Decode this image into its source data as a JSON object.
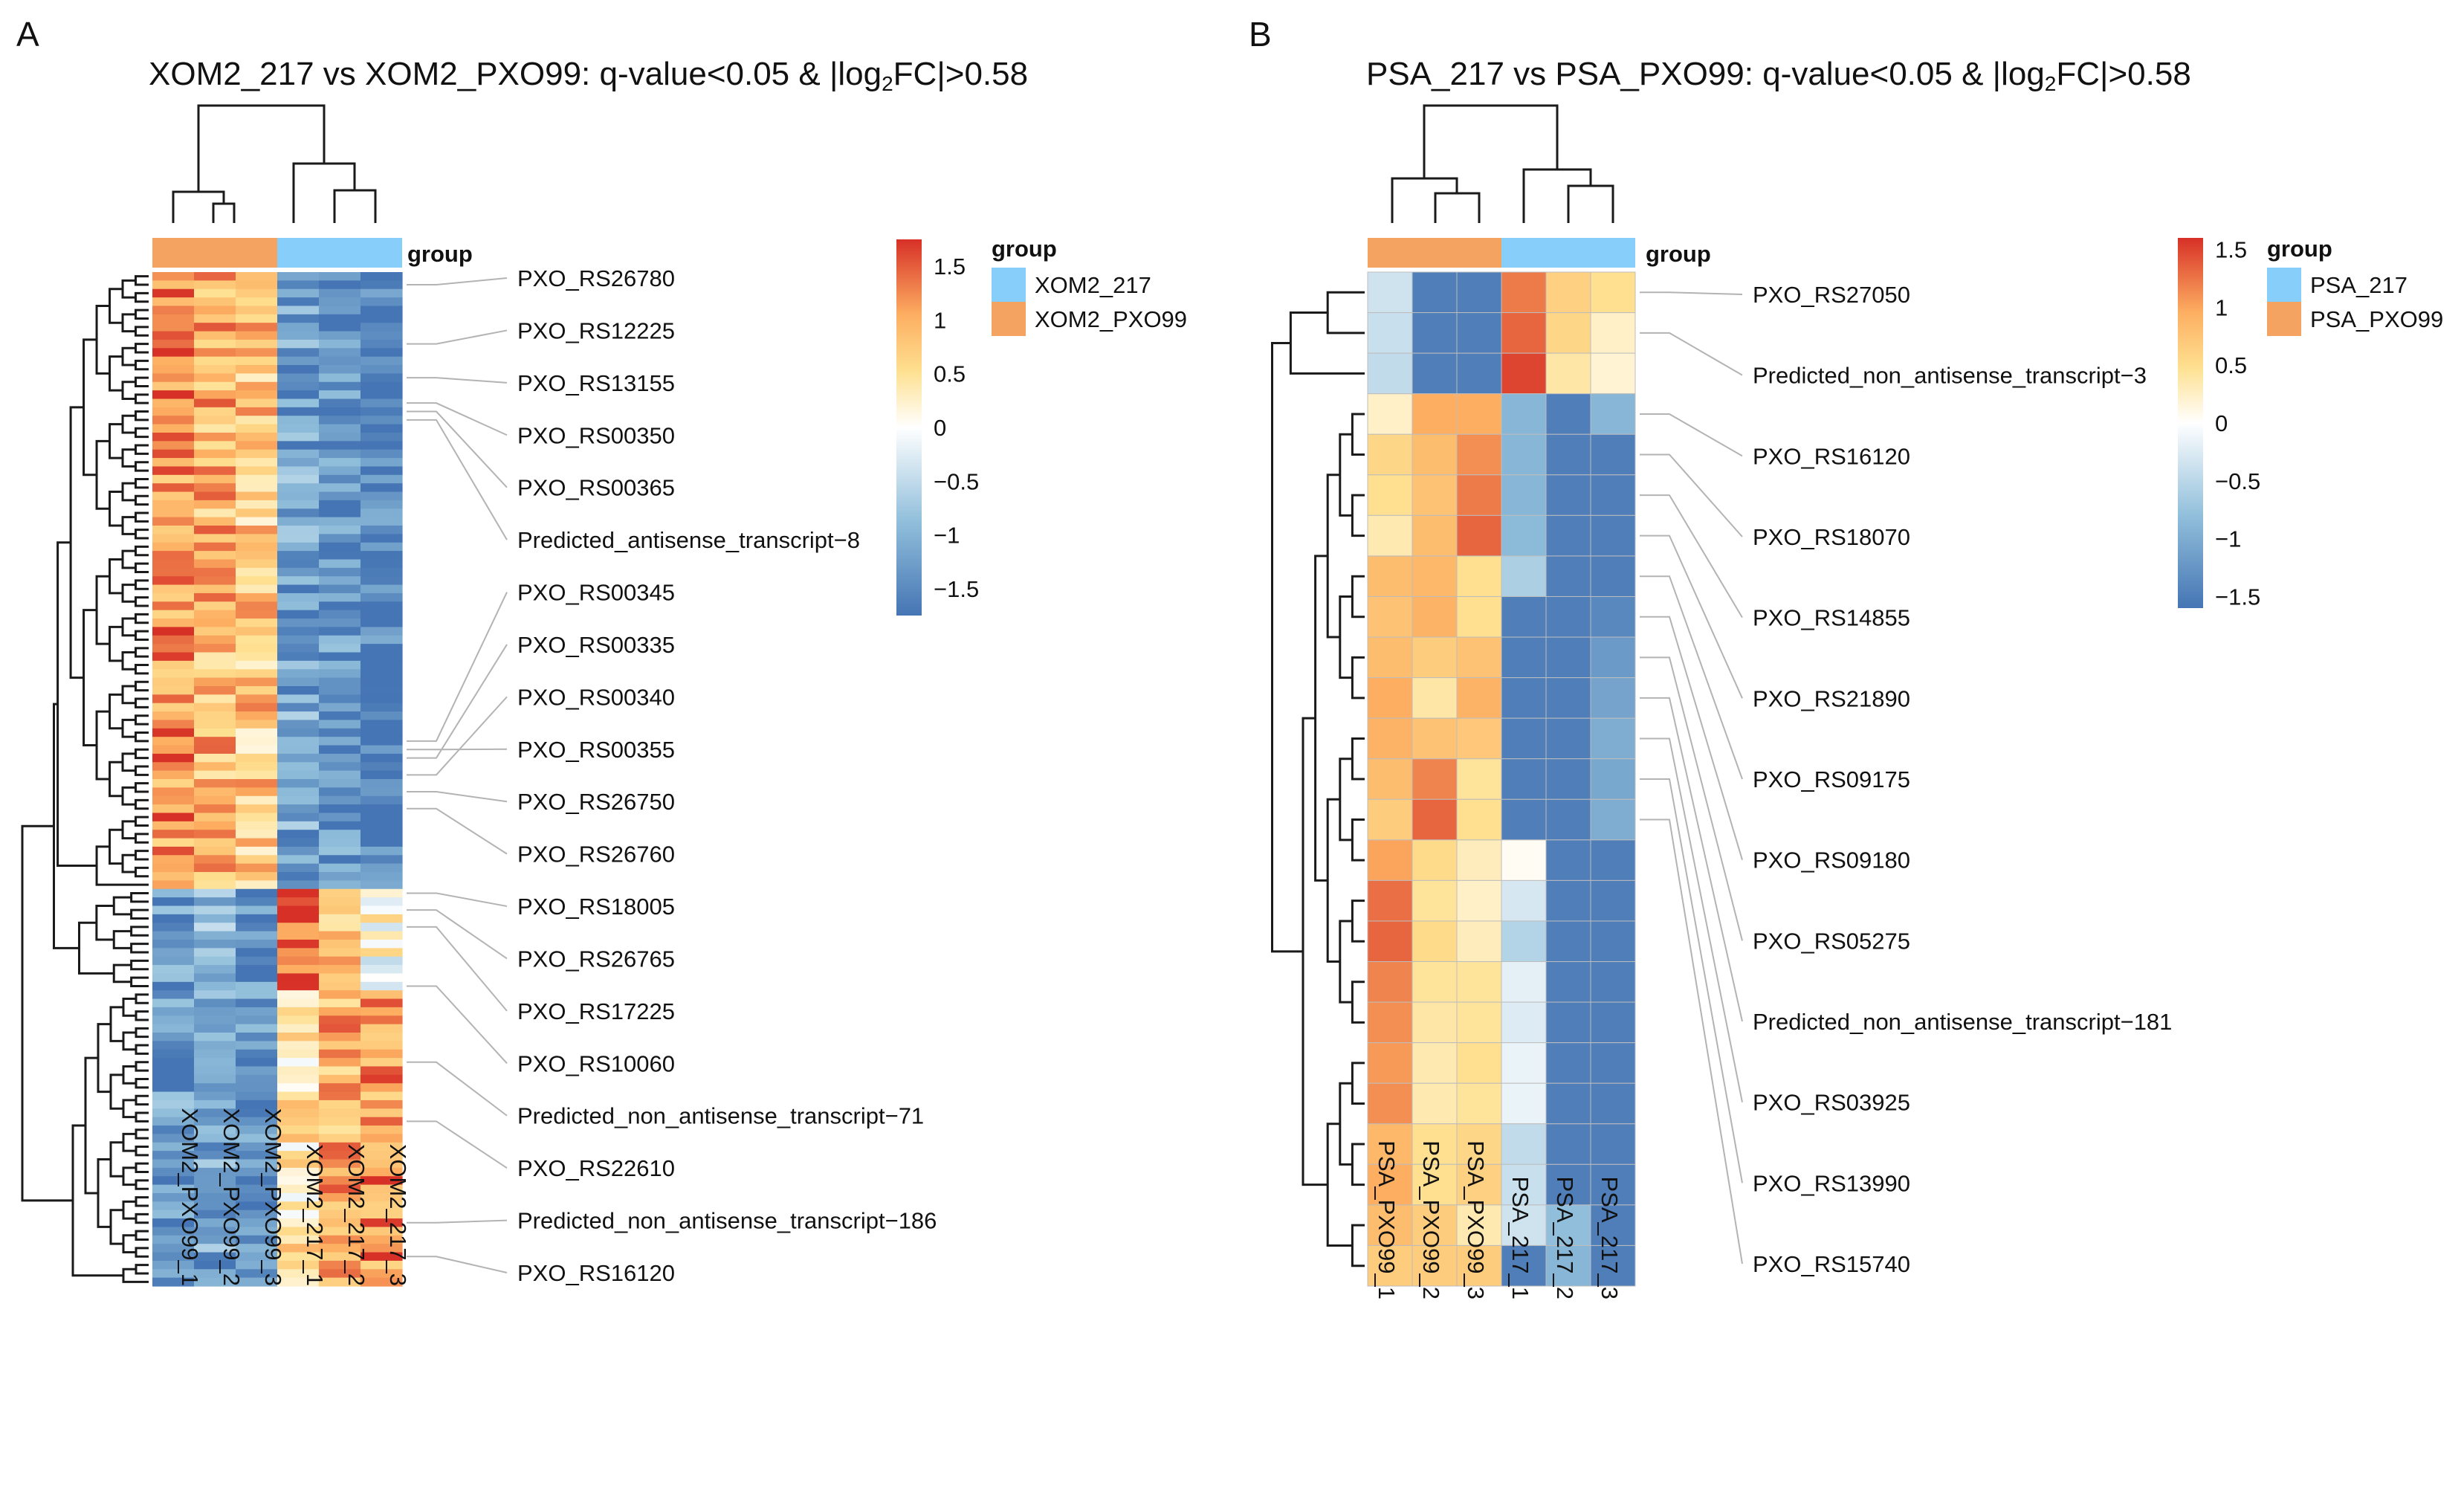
{
  "chart_data": [
    {
      "type": "heatmap",
      "panel_label": "A",
      "title_parts": [
        "XOM2_217 vs XOM2_PXO99: q-value<0.05 & |log",
        "2",
        "FC|>0.58"
      ],
      "columns": [
        "XOM2_PXO99_1",
        "XOM2_PXO99_2",
        "XOM2_PXO99_3",
        "XOM2_217_1",
        "XOM2_217_2",
        "XOM2_217_3"
      ],
      "column_groups": [
        "XOM2_PXO99",
        "XOM2_PXO99",
        "XOM2_PXO99",
        "XOM2_217",
        "XOM2_217",
        "XOM2_217"
      ],
      "annotation_label": "group",
      "legend": {
        "title": "group",
        "entries": [
          {
            "label": "XOM2_217",
            "color": "#87cefa"
          },
          {
            "label": "XOM2_PXO99",
            "color": "#f4a460"
          }
        ]
      },
      "colorbar": {
        "ticks": [
          1.5,
          1,
          0.5,
          0,
          -0.5,
          -1,
          -1.5
        ],
        "tick_labels": [
          "1.5",
          "1",
          "0.5",
          "0",
          "−0.5",
          "−1",
          "−1.5"
        ],
        "range": [
          -1.75,
          1.75
        ]
      },
      "row_count": 120,
      "row_labels": [
        "PXO_RS26780",
        "PXO_RS12225",
        "PXO_RS13155",
        "PXO_RS00350",
        "PXO_RS00365",
        "Predicted_antisense_transcript−8",
        "PXO_RS00345",
        "PXO_RS00335",
        "PXO_RS00340",
        "PXO_RS00355",
        "PXO_RS26750",
        "PXO_RS26760",
        "PXO_RS18005",
        "PXO_RS26765",
        "PXO_RS17225",
        "PXO_RS10060",
        "Predicted_non_antisense_transcript−71",
        "PXO_RS22610",
        "Predicted_non_antisense_transcript−186",
        "PXO_RS16120"
      ],
      "label_row_index": [
        1,
        8,
        12,
        15,
        16,
        17,
        55,
        57,
        59,
        56,
        61,
        63,
        73,
        75,
        77,
        84,
        93,
        100,
        112,
        116
      ],
      "cluster_sizes": [
        73,
        12,
        35
      ],
      "cluster_means": [
        [
          1.1,
          0.9,
          0.7,
          -1.1,
          -1.3,
          -1.5
        ],
        [
          -1.2,
          -0.9,
          -1.3,
          1.4,
          0.8,
          0.1
        ],
        [
          -1.2,
          -1.1,
          -1.3,
          0.4,
          0.9,
          1.1
        ]
      ]
    },
    {
      "type": "heatmap",
      "panel_label": "B",
      "title_parts": [
        "PSA_217 vs PSA_PXO99: q-value<0.05 & |log",
        "2",
        "FC|>0.58"
      ],
      "columns": [
        "PSA_PXO99_1",
        "PSA_PXO99_2",
        "PSA_PXO99_3",
        "PSA_217_1",
        "PSA_217_2",
        "PSA_217_3"
      ],
      "column_groups": [
        "PSA_PXO99",
        "PSA_PXO99",
        "PSA_PXO99",
        "PSA_217",
        "PSA_217",
        "PSA_217"
      ],
      "annotation_label": "group",
      "legend": {
        "title": "group",
        "entries": [
          {
            "label": "PSA_217",
            "color": "#87cefa"
          },
          {
            "label": "PSA_PXO99",
            "color": "#f4a460"
          }
        ]
      },
      "colorbar": {
        "ticks": [
          1.5,
          1,
          0.5,
          0,
          -0.5,
          -1,
          -1.5
        ],
        "tick_labels": [
          "1.5",
          "1",
          "0.5",
          "0",
          "−0.5",
          "−1",
          "−1.5"
        ],
        "range": [
          -1.6,
          1.6
        ]
      },
      "row_labels": [
        "PXO_RS27050",
        "Predicted_non_antisense_transcript−3",
        "PXO_RS16120",
        "PXO_RS18070",
        "PXO_RS14855",
        "PXO_RS21890",
        "PXO_RS09175",
        "PXO_RS09180",
        "PXO_RS05275",
        "Predicted_non_antisense_transcript−181",
        "PXO_RS03925",
        "PXO_RS13990",
        "PXO_RS15740"
      ],
      "label_row_index": [
        0,
        1,
        3,
        4,
        5,
        6,
        7,
        8,
        9,
        10,
        11,
        12,
        13
      ],
      "values": [
        [
          -0.35,
          -1.5,
          -1.5,
          1.25,
          0.65,
          0.5
        ],
        [
          -0.4,
          -1.5,
          -1.5,
          1.35,
          0.6,
          0.25
        ],
        [
          -0.45,
          -1.5,
          -1.5,
          1.5,
          0.4,
          0.2
        ],
        [
          0.25,
          1.0,
          1.0,
          -0.9,
          -1.5,
          -0.9
        ],
        [
          0.6,
          0.85,
          1.15,
          -0.9,
          -1.5,
          -1.5
        ],
        [
          0.5,
          0.8,
          1.25,
          -0.9,
          -1.5,
          -1.5
        ],
        [
          0.35,
          0.85,
          1.35,
          -0.85,
          -1.5,
          -1.5
        ],
        [
          0.85,
          0.9,
          0.5,
          -0.6,
          -1.5,
          -1.5
        ],
        [
          0.8,
          0.95,
          0.5,
          -1.5,
          -1.5,
          -1.4
        ],
        [
          0.85,
          0.7,
          0.8,
          -1.5,
          -1.5,
          -1.2
        ],
        [
          1.0,
          0.4,
          0.95,
          -1.5,
          -1.5,
          -1.1
        ],
        [
          0.95,
          0.8,
          0.75,
          -1.5,
          -1.5,
          -1.0
        ],
        [
          0.85,
          1.2,
          0.45,
          -1.5,
          -1.5,
          -1.05
        ],
        [
          0.7,
          1.35,
          0.5,
          -1.5,
          -1.5,
          -1.0
        ],
        [
          1.05,
          0.55,
          0.3,
          0.05,
          -1.5,
          -1.5
        ],
        [
          1.3,
          0.45,
          0.25,
          -0.3,
          -1.5,
          -1.5
        ],
        [
          1.35,
          0.55,
          0.3,
          -0.55,
          -1.5,
          -1.5
        ],
        [
          1.2,
          0.45,
          0.45,
          -0.2,
          -1.5,
          -1.5
        ],
        [
          1.15,
          0.4,
          0.45,
          -0.25,
          -1.5,
          -1.5
        ],
        [
          1.1,
          0.35,
          0.5,
          -0.15,
          -1.5,
          -1.5
        ],
        [
          1.15,
          0.35,
          0.45,
          -0.15,
          -1.5,
          -1.5
        ],
        [
          0.9,
          0.5,
          0.6,
          -0.45,
          -1.5,
          -1.5
        ],
        [
          1.0,
          0.5,
          0.65,
          -0.4,
          -1.5,
          -1.5
        ],
        [
          0.85,
          0.7,
          0.35,
          -0.35,
          -0.8,
          -1.5
        ],
        [
          0.7,
          0.7,
          0.7,
          -1.5,
          -0.9,
          -1.5
        ]
      ]
    }
  ]
}
